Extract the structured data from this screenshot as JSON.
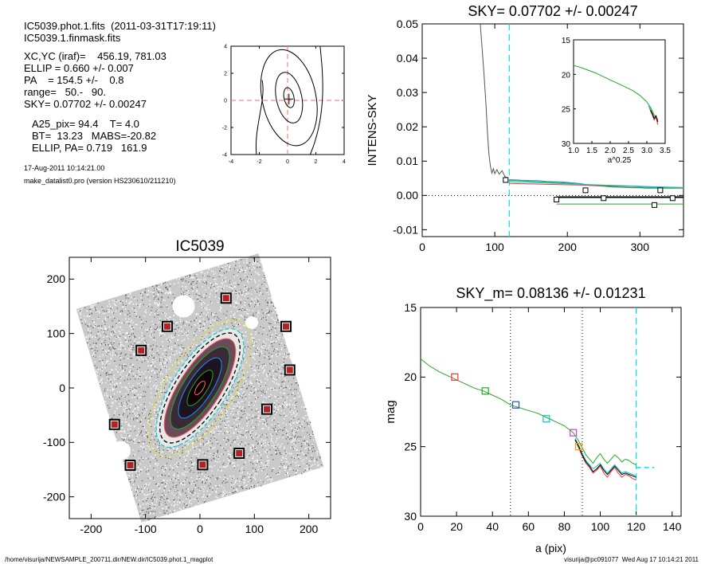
{
  "header": {
    "file": "IC5039.phot.1.fits  (2011-03-31T17:19:11)",
    "mask": "IC5039.1.finmask.fits"
  },
  "info": {
    "lines": [
      "XC,YC (iraf)=    456.19, 781.03",
      "ELLIP = 0.660 +/- 0.007",
      "PA    = 154.5 +/-    0.8",
      "range=   50.-   90.",
      "SKY= 0.07702 +/- 0.00247"
    ],
    "lines2": [
      "A25_pix= 94.4    T= 4.0",
      "BT=  13.23   MABS=-20.82",
      "ELLIP, PA= 0.719   161.9"
    ],
    "date": "17-Aug-2011 10:14:21.00",
    "program": "make_datalist0.pro (version HS230610/211210)"
  },
  "footer": {
    "path": "/home/visurija/NEWSAMPLE_200711.dir/NEW.dir/IC5039.phot.1_magplot",
    "user": "visurija@pc091077  Wed Aug 17 10:14:21 2011"
  },
  "chart_data": [
    {
      "id": "contour-inset",
      "type": "line",
      "title": "",
      "xlabel": "",
      "ylabel": "",
      "xlim": [
        -4,
        4
      ],
      "ylim": [
        -4,
        4
      ],
      "xticks": [
        "-4",
        "-2",
        "0",
        "2",
        "4"
      ],
      "yticks": [
        "-4",
        "-2",
        "0",
        "2",
        "4"
      ],
      "colors": {
        "axes": "#000000",
        "lines": "#000000",
        "dashed": "#ff6a6a"
      }
    },
    {
      "id": "sky-plot",
      "type": "line",
      "title": "SKY= 0.07702 +/- 0.00247",
      "xlabel": "",
      "ylabel": "INTENS-SKY",
      "xlim": [
        0,
        360
      ],
      "ylim": [
        -0.012,
        0.05
      ],
      "xticks": [
        "0",
        "100",
        "200",
        "300"
      ],
      "yticks": [
        "-0.01",
        "0.00",
        "0.01",
        "0.02",
        "0.03",
        "0.04",
        "0.05"
      ],
      "vline_x": 120,
      "series": [
        {
          "color": "#555555",
          "x": [
            80,
            85,
            88,
            90,
            92,
            94,
            96,
            98,
            100,
            103,
            106,
            110,
            114,
            118
          ],
          "y": [
            0.05,
            0.036,
            0.026,
            0.018,
            0.012,
            0.0085,
            0.0065,
            0.0078,
            0.0063,
            0.0075,
            0.0062,
            0.0072,
            0.0055,
            0.005
          ]
        },
        {
          "color": "#1e90ff",
          "x": [
            120,
            130,
            140,
            150,
            160,
            170,
            180,
            190,
            200,
            210,
            220,
            230,
            240,
            250,
            260,
            270,
            280,
            290,
            300,
            310,
            320,
            330,
            340,
            350,
            360
          ],
          "y": [
            0.0046,
            0.0045,
            0.0044,
            0.0043,
            0.0043,
            0.0041,
            0.004,
            0.004,
            0.0038,
            0.0036,
            0.0034,
            0.003,
            0.0029,
            0.0028,
            0.0026,
            0.0025,
            0.0024,
            0.0023,
            0.0024,
            0.0023,
            0.0023,
            0.0022,
            0.0022,
            0.0022,
            0.0022
          ]
        },
        {
          "color": "#22aa22",
          "x": [
            120,
            130,
            140,
            150,
            160,
            170,
            180,
            190,
            200,
            210,
            220,
            230,
            240,
            250,
            260,
            270,
            280,
            290,
            300,
            310,
            320,
            330,
            340,
            350,
            360
          ],
          "y": [
            0.0043,
            0.0043,
            0.0042,
            0.0041,
            0.004,
            0.0039,
            0.0038,
            0.0037,
            0.0036,
            0.0034,
            0.0032,
            0.0029,
            0.0028,
            0.0027,
            0.0025,
            0.0024,
            0.0023,
            0.0022,
            0.0022,
            0.0021,
            0.0021,
            0.0021,
            0.0021,
            0.0021,
            0.0021
          ]
        },
        {
          "color": "#ff3333",
          "x": [
            120,
            360
          ],
          "y": [
            0.0035,
            0.0023
          ]
        },
        {
          "color": "#00cccc",
          "x": [
            120,
            360
          ],
          "y": [
            0.004,
            0.0022
          ]
        },
        {
          "color": "#22aa22",
          "x": [
            185,
            360
          ],
          "y": [
            -0.0025,
            -0.0025
          ]
        },
        {
          "color": "#000000",
          "x": [
            185,
            360
          ],
          "y": [
            -0.0005,
            -0.0005
          ]
        }
      ],
      "markers": {
        "x": [
          115,
          185,
          225,
          250,
          320,
          328,
          345
        ],
        "y": [
          0.0045,
          -0.0012,
          0.0015,
          -0.0008,
          -0.0028,
          0.0015,
          -0.0008
        ]
      },
      "inset": {
        "xlim": [
          1.0,
          3.5
        ],
        "ylim": [
          30,
          15
        ],
        "xticks": [
          "1.0",
          "1.5",
          "2.0",
          "2.5",
          "3.0",
          "3.5"
        ],
        "yticks": [
          "15",
          "20",
          "25",
          "30"
        ],
        "xlabel": "a^0.25",
        "series": [
          {
            "color": "#22aa22",
            "x": [
              1.0,
              1.2,
              1.4,
              1.6,
              1.8,
              2.0,
              2.2,
              2.4,
              2.6,
              2.8,
              3.0,
              3.1,
              3.15,
              3.2,
              3.25,
              3.3
            ],
            "y": [
              18.7,
              19.0,
              19.4,
              19.8,
              20.3,
              20.8,
              21.3,
              21.8,
              22.3,
              23.0,
              24.0,
              24.8,
              25.3,
              25.9,
              26.3,
              26.5
            ]
          },
          {
            "color": "#ff3333",
            "x": [
              3.05,
              3.1,
              3.15,
              3.2,
              3.25,
              3.3
            ],
            "y": [
              24.5,
              25.3,
              25.9,
              26.6,
              26.2,
              27.3
            ]
          },
          {
            "color": "#00cccc",
            "x": [
              3.05,
              3.1,
              3.15,
              3.2,
              3.25,
              3.3
            ],
            "y": [
              24.3,
              25.1,
              25.6,
              26.3,
              26.0,
              26.8
            ]
          },
          {
            "color": "#000000",
            "x": [
              3.1,
              3.15,
              3.2,
              3.25,
              3.3
            ],
            "y": [
              25.2,
              25.7,
              26.4,
              26.0,
              26.9
            ]
          }
        ]
      }
    },
    {
      "id": "galaxy-image",
      "type": "scatter",
      "title": "IC5039",
      "xlabel": "",
      "ylabel": "",
      "xlim": [
        -240,
        240
      ],
      "ylim": [
        -240,
        240
      ],
      "xticks": [
        "-200",
        "-100",
        "0",
        "100",
        "200"
      ],
      "yticks": [
        "-200",
        "-100",
        "0",
        "100",
        "200"
      ],
      "marked_stars": {
        "x": [
          48,
          -60,
          158,
          -108,
          165,
          -157,
          123,
          -128,
          5,
          72
        ],
        "y": [
          165,
          113,
          113,
          69,
          33,
          -67,
          -39,
          -142,
          -141,
          -120
        ]
      }
    },
    {
      "id": "mag-profile",
      "type": "line",
      "title": "SKY_m=  0.08136 +/- 0.01231",
      "xlabel": "a (pix)",
      "ylabel": "mag",
      "xlim": [
        0,
        145
      ],
      "ylim": [
        30,
        15
      ],
      "xticks": [
        "0",
        "20",
        "40",
        "60",
        "80",
        "100",
        "120",
        "140"
      ],
      "yticks": [
        "15",
        "20",
        "25",
        "30"
      ],
      "vlines_dotted": [
        50,
        90
      ],
      "vline_dashed": 120,
      "series": [
        {
          "color": "#22aa22",
          "x": [
            0,
            5,
            10,
            15,
            20,
            25,
            30,
            35,
            40,
            45,
            50,
            55,
            60,
            65,
            70,
            75,
            80,
            85,
            88,
            90,
            92,
            94,
            96,
            98,
            100,
            102,
            104,
            106,
            108,
            110,
            112,
            114,
            116,
            118,
            120
          ],
          "y": [
            18.7,
            19.2,
            19.6,
            19.9,
            20.2,
            20.5,
            20.8,
            21.0,
            21.3,
            21.6,
            22.0,
            22.2,
            22.4,
            22.6,
            22.9,
            23.2,
            23.5,
            24.0,
            24.6,
            25.1,
            25.6,
            25.9,
            26.2,
            25.8,
            25.5,
            25.9,
            26.2,
            25.9,
            25.6,
            25.8,
            26.1,
            25.9,
            26.0,
            26.2,
            26.3
          ]
        },
        {
          "color": "#ff3333",
          "x": [
            86,
            88,
            90,
            92,
            94,
            96,
            98,
            100,
            102,
            104,
            106,
            108,
            110,
            112,
            114,
            116,
            118,
            120
          ],
          "y": [
            24.5,
            25.1,
            25.7,
            26.2,
            26.5,
            26.9,
            26.7,
            26.4,
            26.9,
            27.2,
            26.8,
            26.5,
            26.9,
            27.2,
            27.0,
            27.1,
            27.3,
            27.4
          ]
        },
        {
          "color": "#00cccc",
          "x": [
            86,
            88,
            90,
            92,
            94,
            96,
            98,
            100,
            102,
            104,
            106,
            108,
            110,
            112,
            114,
            116,
            118,
            120
          ],
          "y": [
            24.4,
            24.9,
            25.5,
            26.0,
            26.3,
            26.6,
            26.4,
            26.2,
            26.6,
            26.9,
            26.6,
            26.3,
            26.6,
            26.9,
            26.8,
            26.9,
            27.0,
            27.1
          ]
        },
        {
          "color": "#000000",
          "x": [
            86,
            88,
            90,
            92,
            94,
            96,
            98,
            100,
            102,
            104,
            106,
            108,
            110,
            112,
            114,
            116,
            118,
            120
          ],
          "y": [
            24.5,
            25.0,
            25.6,
            26.1,
            26.4,
            26.8,
            26.6,
            26.3,
            26.7,
            27.0,
            26.7,
            26.4,
            26.7,
            27.0,
            26.9,
            27.0,
            27.1,
            27.2
          ]
        }
      ],
      "markers": [
        {
          "x": 19,
          "y": 20.0,
          "color": "#ff3333"
        },
        {
          "x": 36,
          "y": 21.0,
          "color": "#22aa22"
        },
        {
          "x": 53,
          "y": 22.0,
          "color": "#2a4cd6"
        },
        {
          "x": 70,
          "y": 23.0,
          "color": "#00cccc"
        },
        {
          "x": 85,
          "y": 24.0,
          "color": "#cc44cc"
        },
        {
          "x": 88,
          "y": 25.0,
          "color": "#ff9900"
        }
      ],
      "sky_level": {
        "x": [
          120,
          130
        ],
        "y": [
          26.5,
          26.5
        ]
      }
    }
  ]
}
